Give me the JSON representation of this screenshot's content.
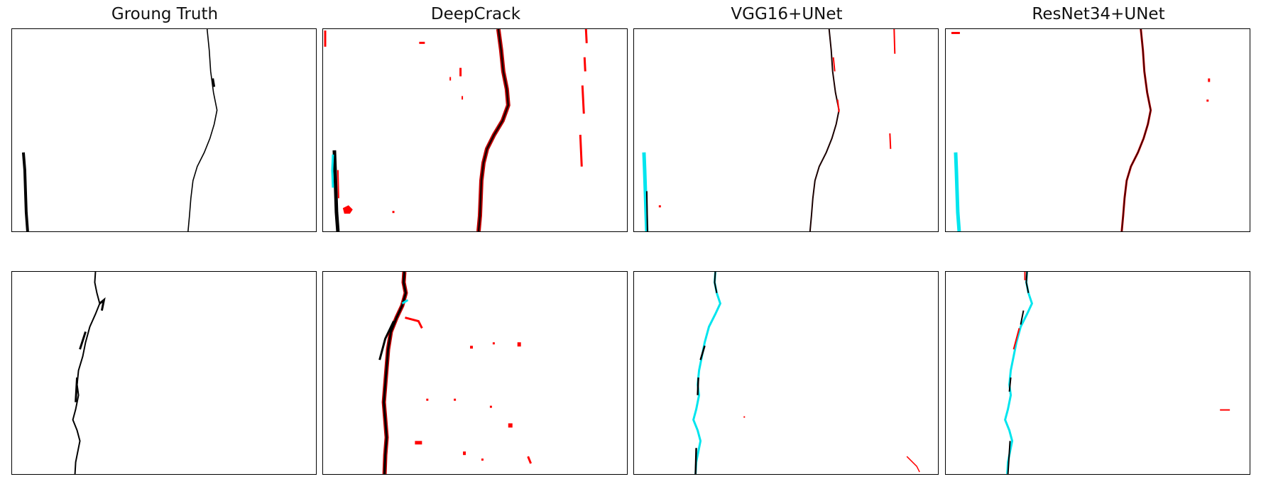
{
  "figure": {
    "columns": [
      {
        "title": "Groung Truth"
      },
      {
        "title": "DeepCrack"
      },
      {
        "title": "VGG16+UNet"
      },
      {
        "title": "ResNet34+UNet"
      }
    ],
    "rows": 2,
    "colors": {
      "ground_truth": "#000000",
      "true_positive": "#1a0000",
      "false_positive": "#ff0000",
      "false_negative": "#00e5ee"
    }
  }
}
